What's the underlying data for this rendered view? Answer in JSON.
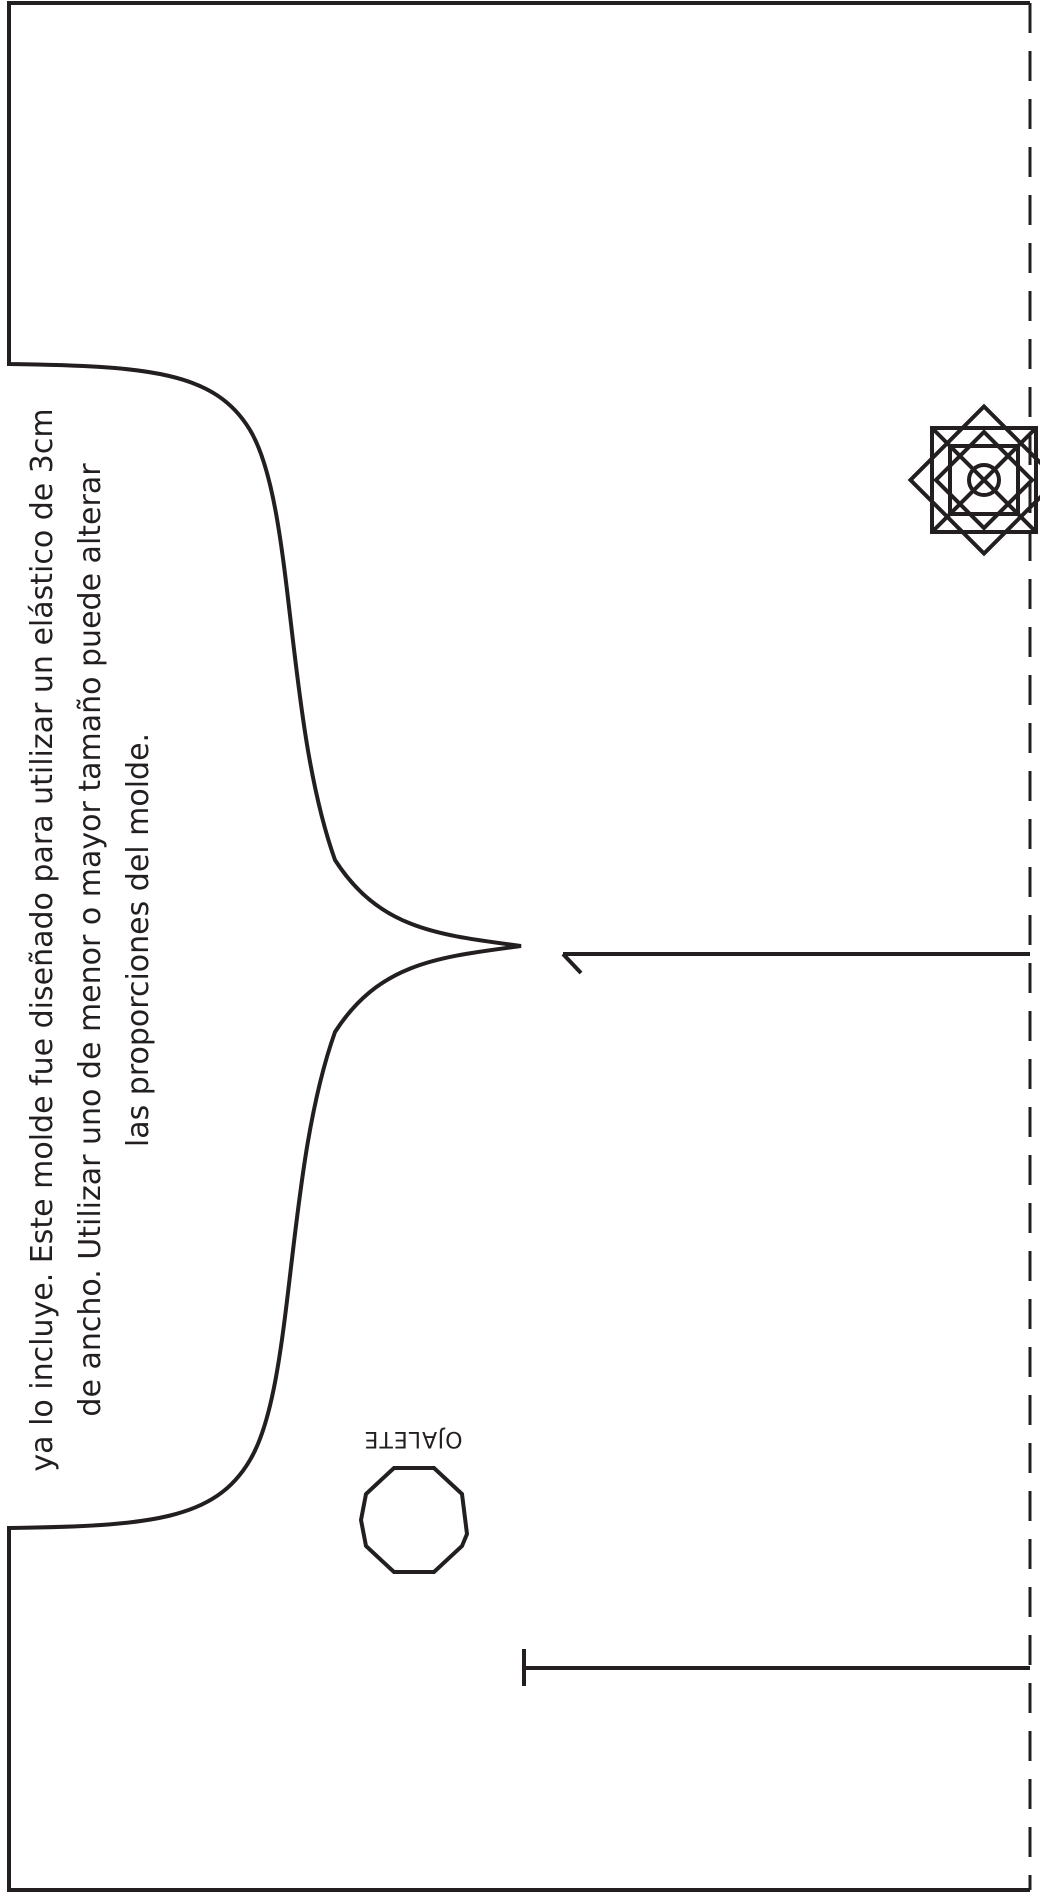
{
  "note": {
    "lines": [
      "ya lo incluye. Este molde fue diseñado para utilizar un elástico de 3cm",
      "de ancho. Utilizar uno de menor o mayor tamaño puede alterar",
      "las proporciones del molde."
    ]
  },
  "eyelet": {
    "label": "OJALETE"
  },
  "colors": {
    "line": "#231f20",
    "paper": "#ffffff"
  },
  "icons": {
    "motif": "octagram-star-icon",
    "eyelet": "octagon-eyelet-icon"
  }
}
